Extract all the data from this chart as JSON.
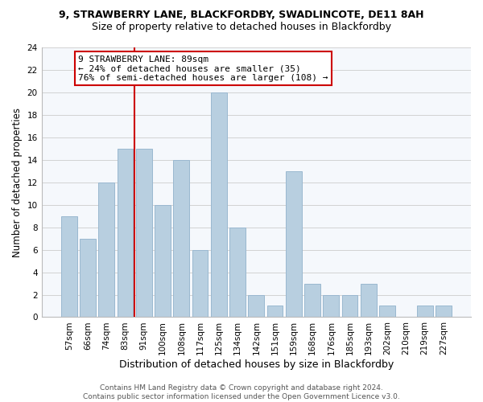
{
  "title1": "9, STRAWBERRY LANE, BLACKFORDBY, SWADLINCOTE, DE11 8AH",
  "title2": "Size of property relative to detached houses in Blackfordby",
  "xlabel": "Distribution of detached houses by size in Blackfordby",
  "ylabel": "Number of detached properties",
  "categories": [
    "57sqm",
    "66sqm",
    "74sqm",
    "83sqm",
    "91sqm",
    "100sqm",
    "108sqm",
    "117sqm",
    "125sqm",
    "134sqm",
    "142sqm",
    "151sqm",
    "159sqm",
    "168sqm",
    "176sqm",
    "185sqm",
    "193sqm",
    "202sqm",
    "210sqm",
    "219sqm",
    "227sqm"
  ],
  "values": [
    9,
    7,
    12,
    15,
    15,
    10,
    14,
    6,
    20,
    8,
    2,
    1,
    13,
    3,
    2,
    2,
    3,
    1,
    0,
    1,
    1
  ],
  "bar_color": "#b8cfe0",
  "bar_edgecolor": "#9ab8d0",
  "redline_x": 3.5,
  "annotation_text": "9 STRAWBERRY LANE: 89sqm\n← 24% of detached houses are smaller (35)\n76% of semi-detached houses are larger (108) →",
  "annotation_box_facecolor": "#ffffff",
  "annotation_box_edgecolor": "#cc0000",
  "redline_color": "#cc0000",
  "ylim": [
    0,
    24
  ],
  "yticks": [
    0,
    2,
    4,
    6,
    8,
    10,
    12,
    14,
    16,
    18,
    20,
    22,
    24
  ],
  "grid_color": "#cccccc",
  "background_color": "#ffffff",
  "plot_background_color": "#f5f8fc",
  "footnote": "Contains HM Land Registry data © Crown copyright and database right 2024.\nContains public sector information licensed under the Open Government Licence v3.0.",
  "title1_fontsize": 9,
  "title2_fontsize": 9,
  "xlabel_fontsize": 9,
  "ylabel_fontsize": 8.5,
  "tick_fontsize": 7.5,
  "annotation_fontsize": 8,
  "footnote_fontsize": 6.5
}
